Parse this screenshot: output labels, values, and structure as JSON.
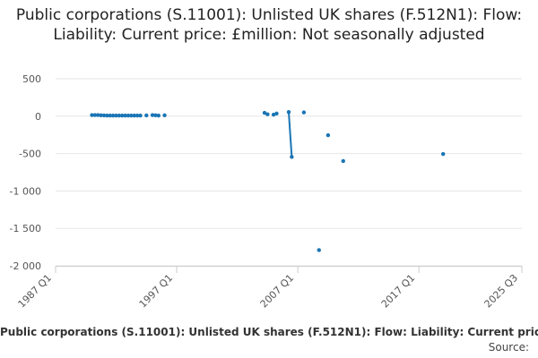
{
  "chart_data": {
    "type": "scatter",
    "title": "Public corporations (S.11001): Unlisted UK shares (F.512N1): Flow: Liability: Current price: £million: Not seasonally adjusted",
    "series_name": "Public corporations (S.11001): Unlisted UK shares (F.512N1): Flow: Liability: Current price: £million: Not seasonally adjusted",
    "source_label": "Source:",
    "color": "#1a75b5",
    "ylim": [
      -2000,
      500
    ],
    "y_ticks": [
      500,
      0,
      -500,
      -1000,
      -1500,
      -2000
    ],
    "y_tick_labels": [
      "500",
      "0",
      "-500",
      "-1 000",
      "-1 500",
      "-2 000"
    ],
    "x_ticks": [
      "1987 Q1",
      "1997 Q1",
      "2007 Q1",
      "2017 Q1",
      "2025 Q3"
    ],
    "grid": true,
    "points": [
      {
        "x": "1990 Q1",
        "y": 15
      },
      {
        "x": "1990 Q2",
        "y": 15
      },
      {
        "x": "1990 Q3",
        "y": 15
      },
      {
        "x": "1990 Q4",
        "y": 12
      },
      {
        "x": "1991 Q1",
        "y": 10
      },
      {
        "x": "1991 Q2",
        "y": 8
      },
      {
        "x": "1991 Q3",
        "y": 8
      },
      {
        "x": "1991 Q4",
        "y": 8
      },
      {
        "x": "1992 Q1",
        "y": 8
      },
      {
        "x": "1992 Q2",
        "y": 8
      },
      {
        "x": "1992 Q3",
        "y": 8
      },
      {
        "x": "1992 Q4",
        "y": 8
      },
      {
        "x": "1993 Q1",
        "y": 8
      },
      {
        "x": "1993 Q2",
        "y": 8
      },
      {
        "x": "1993 Q3",
        "y": 8
      },
      {
        "x": "1993 Q4",
        "y": 8
      },
      {
        "x": "1994 Q1",
        "y": 8
      },
      {
        "x": "1994 Q3",
        "y": 10
      },
      {
        "x": "1995 Q1",
        "y": 15
      },
      {
        "x": "1995 Q2",
        "y": 12
      },
      {
        "x": "1995 Q3",
        "y": 8
      },
      {
        "x": "1996 Q1",
        "y": 12
      },
      {
        "x": "2004 Q2",
        "y": 45
      },
      {
        "x": "2004 Q3",
        "y": 25
      },
      {
        "x": "2005 Q1",
        "y": 20
      },
      {
        "x": "2005 Q2",
        "y": 35
      },
      {
        "x": "2006 Q2",
        "y": 55
      },
      {
        "x": "2006 Q3",
        "y": -545
      },
      {
        "x": "2007 Q3",
        "y": 50
      },
      {
        "x": "2008 Q4",
        "y": -1790
      },
      {
        "x": "2009 Q3",
        "y": -255
      },
      {
        "x": "2010 Q4",
        "y": -600
      },
      {
        "x": "2019 Q1",
        "y": -505
      }
    ],
    "connected_pairs": [
      [
        26,
        27
      ]
    ]
  }
}
